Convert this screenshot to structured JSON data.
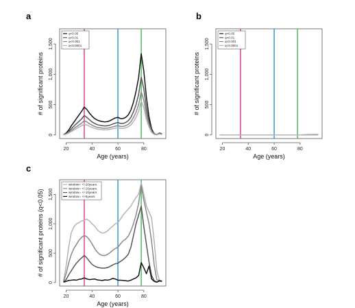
{
  "chart_data": [
    {
      "panel": "a",
      "type": "line",
      "xlabel": "Age (years)",
      "ylabel": "# of significant proteins",
      "xlim": [
        15,
        97
      ],
      "ylim": [
        -60,
        1750
      ],
      "xticks": [
        20,
        40,
        60,
        80
      ],
      "yticks": [
        0,
        500,
        1000,
        1500
      ],
      "ytick_labels": [
        "0",
        "500",
        "1,000",
        "1,500"
      ],
      "legend_position": "top-left",
      "vlines": [
        {
          "x": 34,
          "color": "#d6338a"
        },
        {
          "x": 60,
          "color": "#2a8fd0"
        },
        {
          "x": 78,
          "color": "#44b556"
        }
      ],
      "x": [
        18,
        20,
        22,
        24,
        26,
        28,
        30,
        32,
        34,
        36,
        38,
        40,
        42,
        44,
        46,
        48,
        50,
        52,
        54,
        56,
        58,
        60,
        62,
        64,
        66,
        68,
        70,
        72,
        74,
        76,
        78,
        80,
        82,
        84,
        86,
        88,
        90,
        92,
        94
      ],
      "series": [
        {
          "name": "q<0.05",
          "color": "#111111",
          "values": [
            5,
            30,
            80,
            150,
            210,
            270,
            330,
            390,
            460,
            420,
            360,
            310,
            270,
            245,
            230,
            220,
            215,
            220,
            235,
            260,
            280,
            290,
            270,
            270,
            290,
            330,
            410,
            540,
            720,
            950,
            1340,
            1050,
            620,
            300,
            100,
            20,
            5,
            30,
            20
          ]
        },
        {
          "name": "q<0.01",
          "color": "#555555",
          "values": [
            3,
            20,
            55,
            100,
            145,
            185,
            225,
            265,
            320,
            290,
            250,
            215,
            190,
            170,
            160,
            152,
            148,
            152,
            163,
            180,
            195,
            205,
            190,
            190,
            205,
            235,
            290,
            380,
            500,
            670,
            950,
            760,
            440,
            220,
            75,
            15,
            3,
            25,
            15
          ]
        },
        {
          "name": "q<0.001",
          "color": "#888888",
          "values": [
            2,
            15,
            40,
            70,
            105,
            135,
            165,
            195,
            235,
            215,
            185,
            160,
            140,
            125,
            118,
            112,
            110,
            112,
            120,
            133,
            145,
            152,
            140,
            140,
            152,
            175,
            215,
            285,
            375,
            500,
            710,
            570,
            330,
            165,
            55,
            10,
            2,
            20,
            10
          ]
        },
        {
          "name": "q<0.0001",
          "color": "#b3b3b3",
          "values": [
            2,
            12,
            30,
            55,
            80,
            105,
            130,
            150,
            180,
            165,
            142,
            123,
            108,
            96,
            90,
            86,
            84,
            86,
            92,
            102,
            112,
            118,
            108,
            108,
            118,
            135,
            165,
            220,
            290,
            390,
            560,
            445,
            255,
            128,
            42,
            8,
            2,
            15,
            8
          ]
        }
      ]
    },
    {
      "panel": "b",
      "type": "line",
      "xlabel": "Age (years)",
      "ylabel": "# of significant proteins",
      "xlim": [
        15,
        97
      ],
      "ylim": [
        -60,
        1750
      ],
      "xticks": [
        20,
        40,
        60,
        80
      ],
      "yticks": [
        0,
        500,
        1000,
        1500
      ],
      "ytick_labels": [
        "0",
        "500",
        "1,000",
        "1,500"
      ],
      "legend_position": "top-left",
      "vlines": [
        {
          "x": 34,
          "color": "#d6338a"
        },
        {
          "x": 60,
          "color": "#2a8fd0"
        },
        {
          "x": 78,
          "color": "#44b556"
        }
      ],
      "x": [
        18,
        30,
        40,
        50,
        60,
        70,
        80,
        94
      ],
      "series": [
        {
          "name": "q<0.05",
          "color": "#111111",
          "values": [
            0,
            0,
            0,
            0,
            0,
            0,
            0,
            5
          ]
        },
        {
          "name": "q<0.01",
          "color": "#555555",
          "values": [
            0,
            0,
            0,
            0,
            0,
            0,
            0,
            3
          ]
        },
        {
          "name": "q<0.001",
          "color": "#888888",
          "values": [
            0,
            0,
            0,
            0,
            0,
            0,
            0,
            2
          ]
        },
        {
          "name": "q<0.0001",
          "color": "#b3b3b3",
          "values": [
            0,
            0,
            0,
            0,
            0,
            0,
            0,
            1
          ]
        }
      ]
    },
    {
      "panel": "c",
      "type": "line",
      "xlabel": "Age (years)",
      "ylabel": "# of significant proteins (q<0.05)",
      "xlim": [
        15,
        97
      ],
      "ylim": [
        -60,
        1750
      ],
      "xticks": [
        20,
        40,
        60,
        80
      ],
      "yticks": [
        0,
        500,
        1000,
        1500
      ],
      "ytick_labels": [
        "0",
        "500",
        "1,000",
        "1,500"
      ],
      "legend_position": "top-left",
      "vlines": [
        {
          "x": 34,
          "color": "#d6338a"
        },
        {
          "x": 60,
          "color": "#2a8fd0"
        },
        {
          "x": 78,
          "color": "#44b556"
        }
      ],
      "x": [
        18,
        20,
        22,
        24,
        26,
        28,
        30,
        32,
        34,
        36,
        38,
        40,
        42,
        44,
        46,
        48,
        50,
        52,
        54,
        56,
        58,
        60,
        62,
        64,
        66,
        68,
        70,
        72,
        74,
        76,
        78,
        80,
        82,
        84,
        86,
        88,
        90,
        92,
        94
      ],
      "series": [
        {
          "name": "window= +/-20years",
          "color": "#b3b3b3",
          "values": [
            20,
            280,
            600,
            850,
            950,
            1000,
            1020,
            1050,
            1060,
            1080,
            1050,
            1000,
            960,
            900,
            860,
            840,
            850,
            880,
            920,
            960,
            1000,
            1020,
            1080,
            1150,
            1200,
            1250,
            1300,
            1380,
            1450,
            1500,
            1700,
            1500,
            1300,
            1200,
            1100,
            700,
            200,
            40,
            30
          ]
        },
        {
          "name": "window= +/-15years",
          "color": "#888888",
          "values": [
            10,
            150,
            330,
            480,
            580,
            650,
            720,
            770,
            800,
            780,
            730,
            660,
            580,
            520,
            480,
            460,
            460,
            480,
            510,
            550,
            580,
            600,
            660,
            710,
            740,
            790,
            880,
            1000,
            1150,
            1350,
            1650,
            1400,
            1200,
            1000,
            700,
            300,
            50,
            30,
            20
          ]
        },
        {
          "name": "window= +/-10years",
          "color": "#555555",
          "values": [
            5,
            50,
            130,
            200,
            270,
            330,
            380,
            420,
            460,
            420,
            360,
            310,
            280,
            260,
            250,
            245,
            245,
            255,
            275,
            300,
            320,
            330,
            360,
            390,
            430,
            480,
            600,
            800,
            1000,
            1150,
            1300,
            950,
            650,
            350,
            120,
            30,
            10,
            25,
            20
          ]
        },
        {
          "name": "window= +/-5years",
          "color": "#111111",
          "values": [
            5,
            20,
            35,
            40,
            45,
            40,
            55,
            60,
            80,
            60,
            50,
            55,
            60,
            45,
            40,
            35,
            45,
            40,
            50,
            70,
            60,
            40,
            40,
            35,
            30,
            25,
            40,
            60,
            80,
            120,
            340,
            250,
            150,
            280,
            60,
            20,
            5,
            30,
            20
          ]
        }
      ]
    }
  ]
}
